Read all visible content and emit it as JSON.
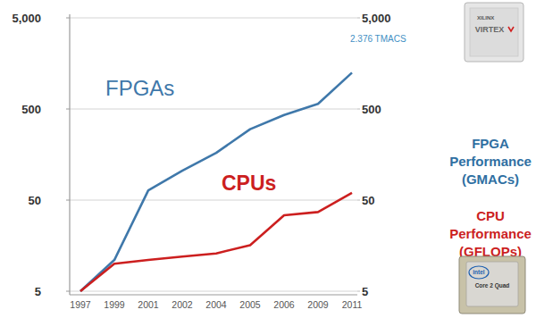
{
  "chart_data": {
    "type": "line",
    "y_label": "FPGA Performance (GMACs)",
    "y2_label": "CPU Performance (GFLOPs)",
    "categories": [
      "1997",
      "1999",
      "2001",
      "2002",
      "2004",
      "2005",
      "2006",
      "2009",
      "2011"
    ],
    "series": [
      {
        "name": "FPGAs",
        "color": "#3f78aa",
        "values": [
          5,
          11,
          64,
          105,
          165,
          300,
          430,
          570,
          1250
        ]
      },
      {
        "name": "CPUs",
        "color": "#cc1f1f",
        "axis": "y2",
        "values": [
          5,
          10,
          11,
          12,
          13,
          16,
          34,
          37,
          60
        ]
      }
    ],
    "ylim": [
      5,
      5000
    ],
    "yticks": [
      5,
      50,
      500,
      {
        "value": 5000,
        "label": "5,000"
      }
    ],
    "y2lim": [
      5,
      5000
    ],
    "y2ticks": [
      5,
      50,
      500,
      {
        "value": 5000,
        "label": "5,000"
      }
    ],
    "log": "y",
    "grid": true,
    "annotations": [
      "2.376 TMACS",
      "XILINX",
      "VIRTEX",
      "intel",
      "Core 2 Quad"
    ]
  }
}
